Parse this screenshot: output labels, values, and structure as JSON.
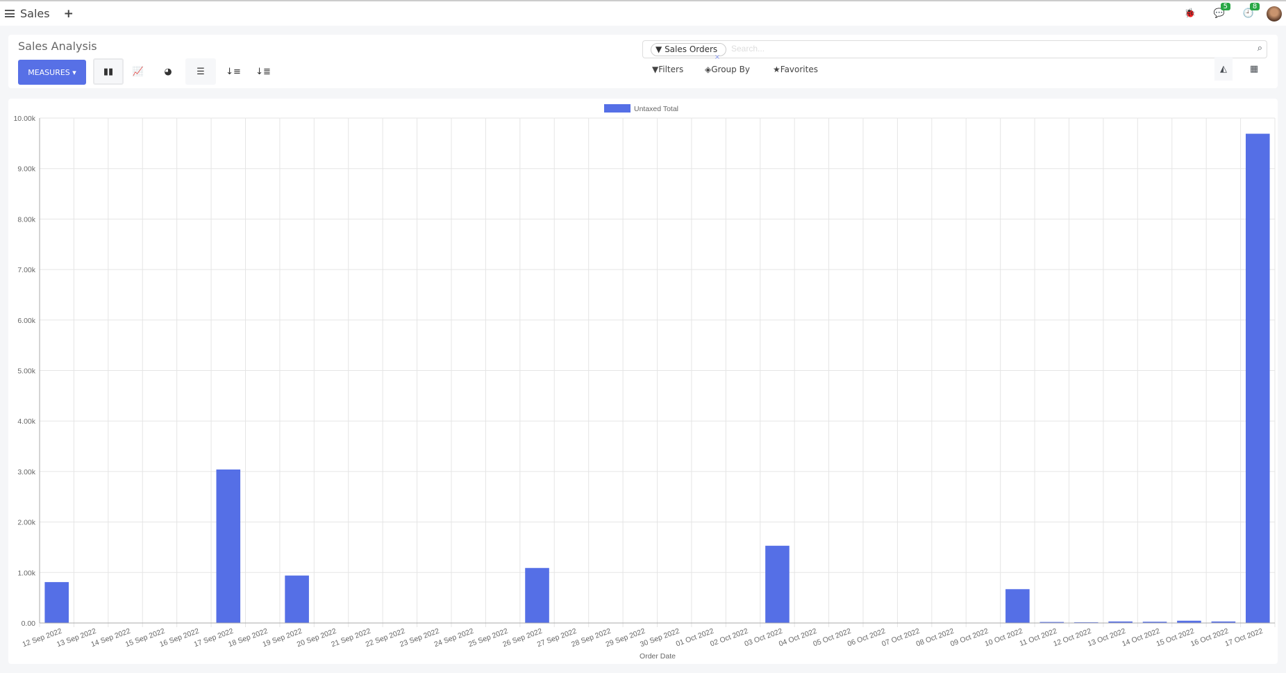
{
  "topbar": {
    "app_name": "Sales",
    "new_label": "+",
    "chat_count": "5",
    "activity_count": "8"
  },
  "control_panel": {
    "title": "Sales Analysis",
    "measures_label": "MEASURES ▾",
    "search": {
      "facet_label": "Sales Orders",
      "placeholder": "Search..."
    },
    "filters_label": "Filters",
    "group_by_label": "Group By",
    "favorites_label": "Favorites"
  },
  "chart_data": {
    "type": "bar",
    "legend": [
      "Untaxed Total"
    ],
    "legend_position": "top-center",
    "xlabel": "Order Date",
    "ylabel": "",
    "ylim": [
      0,
      10000
    ],
    "yticks": [
      "0.00",
      "1.00k",
      "2.00k",
      "3.00k",
      "4.00k",
      "5.00k",
      "6.00k",
      "7.00k",
      "8.00k",
      "9.00k",
      "10.00k"
    ],
    "grid": true,
    "color": "#556fe6",
    "categories": [
      "12 Sep 2022",
      "13 Sep 2022",
      "14 Sep 2022",
      "15 Sep 2022",
      "16 Sep 2022",
      "17 Sep 2022",
      "18 Sep 2022",
      "19 Sep 2022",
      "20 Sep 2022",
      "21 Sep 2022",
      "22 Sep 2022",
      "23 Sep 2022",
      "24 Sep 2022",
      "25 Sep 2022",
      "26 Sep 2022",
      "27 Sep 2022",
      "28 Sep 2022",
      "29 Sep 2022",
      "30 Sep 2022",
      "01 Oct 2022",
      "02 Oct 2022",
      "03 Oct 2022",
      "04 Oct 2022",
      "05 Oct 2022",
      "06 Oct 2022",
      "07 Oct 2022",
      "08 Oct 2022",
      "09 Oct 2022",
      "10 Oct 2022",
      "11 Oct 2022",
      "12 Oct 2022",
      "13 Oct 2022",
      "14 Oct 2022",
      "15 Oct 2022",
      "16 Oct 2022",
      "17 Oct 2022"
    ],
    "series": [
      {
        "name": "Untaxed Total",
        "values": [
          810,
          0,
          0,
          0,
          0,
          3040,
          0,
          940,
          0,
          0,
          0,
          0,
          0,
          0,
          1090,
          0,
          0,
          0,
          0,
          0,
          0,
          1530,
          0,
          0,
          0,
          0,
          0,
          0,
          670,
          20,
          15,
          30,
          25,
          45,
          30,
          9690
        ]
      }
    ]
  }
}
